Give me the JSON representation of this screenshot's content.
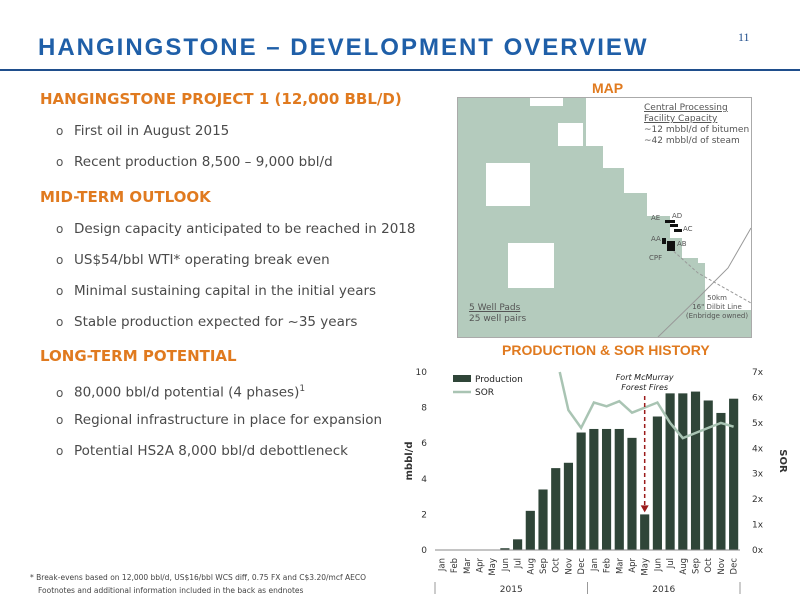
{
  "page_number": "11",
  "title": "HANGINGSTONE – DEVELOPMENT OVERVIEW",
  "sections": [
    {
      "heading": "HANGINGSTONE PROJECT 1 (12,000 BBL/D)",
      "bullets": [
        "First oil in August 2015",
        "Recent production 8,500 – 9,000 bbl/d"
      ]
    },
    {
      "heading": "MID-TERM OUTLOOK",
      "bullets": [
        "Design capacity anticipated to be reached in 2018",
        "US$54/bbl WTI* operating break even",
        "Minimal sustaining capital in the initial years",
        "Stable production expected for ~35 years"
      ]
    },
    {
      "heading": "LONG-TERM POTENTIAL",
      "bullets": [
        "80,000 bbl/d potential (4 phases)",
        "Regional infrastructure in place for expansion",
        "Potential HS2A 8,000 bbl/d debottleneck"
      ],
      "bullet0_sup": "1"
    }
  ],
  "map": {
    "title": "MAP",
    "cpf_heading_1": "Central Processing",
    "cpf_heading_2": "Facility Capacity",
    "cpf_line1": "~12 mbbl/d of bitumen",
    "cpf_line2": "~42 mbbl/d of steam",
    "pads": [
      "AE",
      "AD",
      "AC",
      "AA",
      "AB"
    ],
    "cpf_label": "CPF",
    "wellpads_heading": "5 Well Pads",
    "wellpairs": "25 well pairs",
    "pipeline_1": "50km",
    "pipeline_2": "16\" Dilbit Line",
    "pipeline_3": "(Enbridge owned)",
    "colors": {
      "lease": "#b4cbbd",
      "pipeline": "#999999",
      "facility": "#111111"
    }
  },
  "production_title": "PRODUCTION & SOR HISTORY",
  "chart_data": {
    "type": "bar",
    "categories": [
      "Jan",
      "Feb",
      "Mar",
      "Apr",
      "May",
      "Jun",
      "Jul",
      "Aug",
      "Sep",
      "Oct",
      "Nov",
      "Dec",
      "Jan",
      "Feb",
      "Mar",
      "Apr",
      "May",
      "Jun",
      "Jul",
      "Aug",
      "Sep",
      "Oct",
      "Nov",
      "Dec"
    ],
    "years": [
      {
        "label": "2015",
        "span": [
          0,
          11
        ]
      },
      {
        "label": "2016",
        "span": [
          12,
          23
        ]
      }
    ],
    "series": [
      {
        "name": "Production",
        "axis": "left",
        "chart_type": "bar",
        "color": "#2f4538",
        "values": [
          0,
          0,
          0,
          0,
          0,
          0.1,
          0.6,
          2.2,
          3.4,
          4.6,
          4.9,
          6.6,
          6.8,
          6.8,
          6.8,
          6.3,
          2.0,
          7.5,
          8.8,
          8.8,
          8.9,
          8.4,
          7.7,
          8.5
        ]
      },
      {
        "name": "SOR",
        "axis": "right",
        "chart_type": "line",
        "color": "#a9c4b3",
        "values": [
          null,
          null,
          null,
          null,
          null,
          null,
          null,
          null,
          null,
          null,
          5.5,
          4.8,
          5.8,
          5.65,
          5.85,
          5.4,
          5.6,
          5.8,
          5.0,
          4.4,
          4.6,
          4.8,
          5.0,
          4.85
        ]
      }
    ],
    "ylabel": "mbbl/d",
    "y2label": "SOR",
    "ylim": [
      0,
      10
    ],
    "yticks": [
      "0",
      "2",
      "4",
      "6",
      "8",
      "10"
    ],
    "y2lim": [
      0,
      7
    ],
    "y2ticks": [
      "0x",
      "1x",
      "2x",
      "3x",
      "4x",
      "5x",
      "6x",
      "7x"
    ],
    "legend_position": "top-left",
    "annotation": {
      "text_1": "Fort McMurray",
      "text_2": "Forest Fires",
      "category_index": 16
    }
  },
  "footnotes": [
    "* Break-evens based on 12,000 bbl/d, US$16/bbl WCS diff, 0.75 FX and C$3.20/mcf AECO",
    "Footnotes and additional information included in the back as endnotes"
  ]
}
